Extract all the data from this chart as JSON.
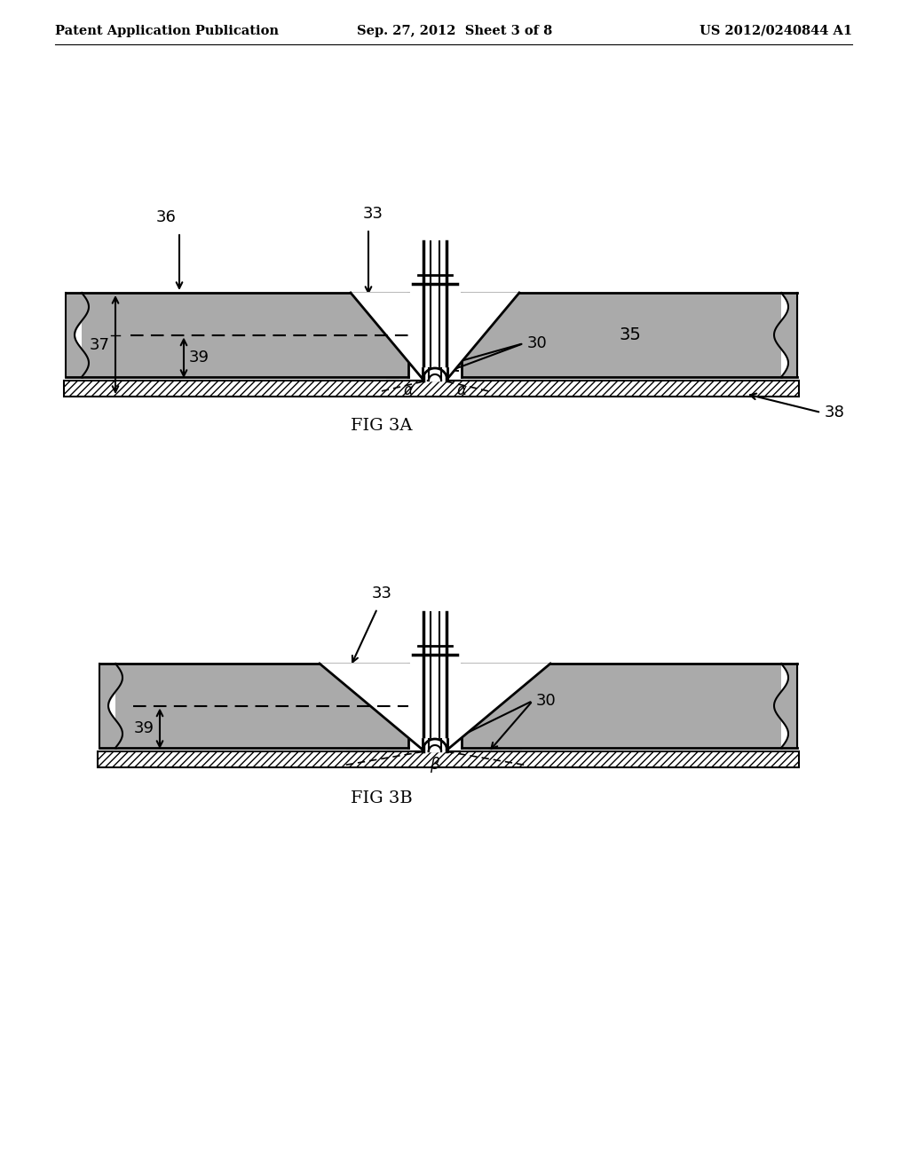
{
  "bg_color": "#ffffff",
  "header_left": "Patent Application Publication",
  "header_center": "Sep. 27, 2012  Sheet 3 of 8",
  "header_right": "US 2012/0240844 A1",
  "fig_label_3a": "FIG 3A",
  "fig_label_3b": "FIG 3B",
  "insulation_color": "#aaaaaa",
  "insulation_texture": "#999999"
}
